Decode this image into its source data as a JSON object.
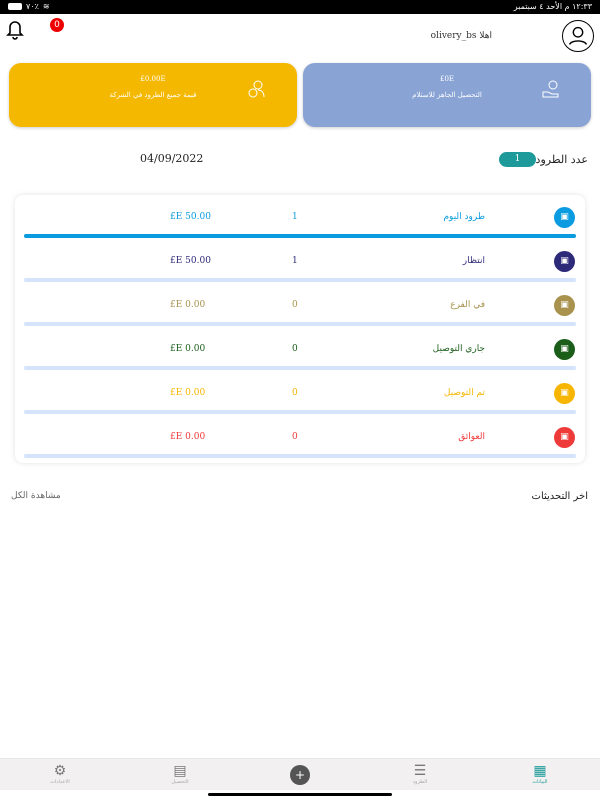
{
  "status_bar": {
    "time_date": "١٢:٣٣ م  الأحد ٤ سبتمبر",
    "battery": "٧٠٪"
  },
  "header": {
    "notification_count": "0",
    "greeting": "اهلا",
    "username": "olivery_bs"
  },
  "cards": [
    {
      "value": "£0.00E",
      "label": "قيمة جميع الطرود في الشركة",
      "color": "#f5b800",
      "icon": "delivery-person-icon"
    },
    {
      "value": "£0E",
      "label": "التحصيل الجاهز للاستلام",
      "color": "#88a3d4",
      "icon": "hand-money-icon"
    }
  ],
  "parcels": {
    "label": "عدد الطرود",
    "count": "1",
    "date": "04/09/2022"
  },
  "rows": [
    {
      "label": "طرود اليوم",
      "count": "1",
      "amount": "£E 50.00",
      "color": "#0a9be0",
      "bar": "#0a9be0"
    },
    {
      "label": "انتظار",
      "count": "1",
      "amount": "£E 50.00",
      "color": "#2e2a7a",
      "bar": "#d6e4fb"
    },
    {
      "label": "في الفرع",
      "count": "0",
      "amount": "£E 0.00",
      "color": "#a8924e",
      "bar": "#d6e4fb"
    },
    {
      "label": "جاري التوصيل",
      "count": "0",
      "amount": "£E 0.00",
      "color": "#1a5e1a",
      "bar": "#d6e4fb"
    },
    {
      "label": "تم التوصيل",
      "count": "0",
      "amount": "£E 0.00",
      "color": "#f7b500",
      "bar": "#d6e4fb"
    },
    {
      "label": "العوائق",
      "count": "0",
      "amount": "£E 0.00",
      "color": "#ef3a3a",
      "bar": "#d6e4fb"
    }
  ],
  "updates": {
    "title": "اخر التحديثات",
    "view_all": "مشاهدة الكل"
  },
  "nav": [
    {
      "label": "الاعدادات",
      "icon": "gear-icon"
    },
    {
      "label": "التحصيل",
      "icon": "document-icon"
    },
    {
      "label": "الطرود",
      "icon": "list-icon"
    },
    {
      "label": "البيانات",
      "icon": "dashboard-icon",
      "active": true
    }
  ]
}
